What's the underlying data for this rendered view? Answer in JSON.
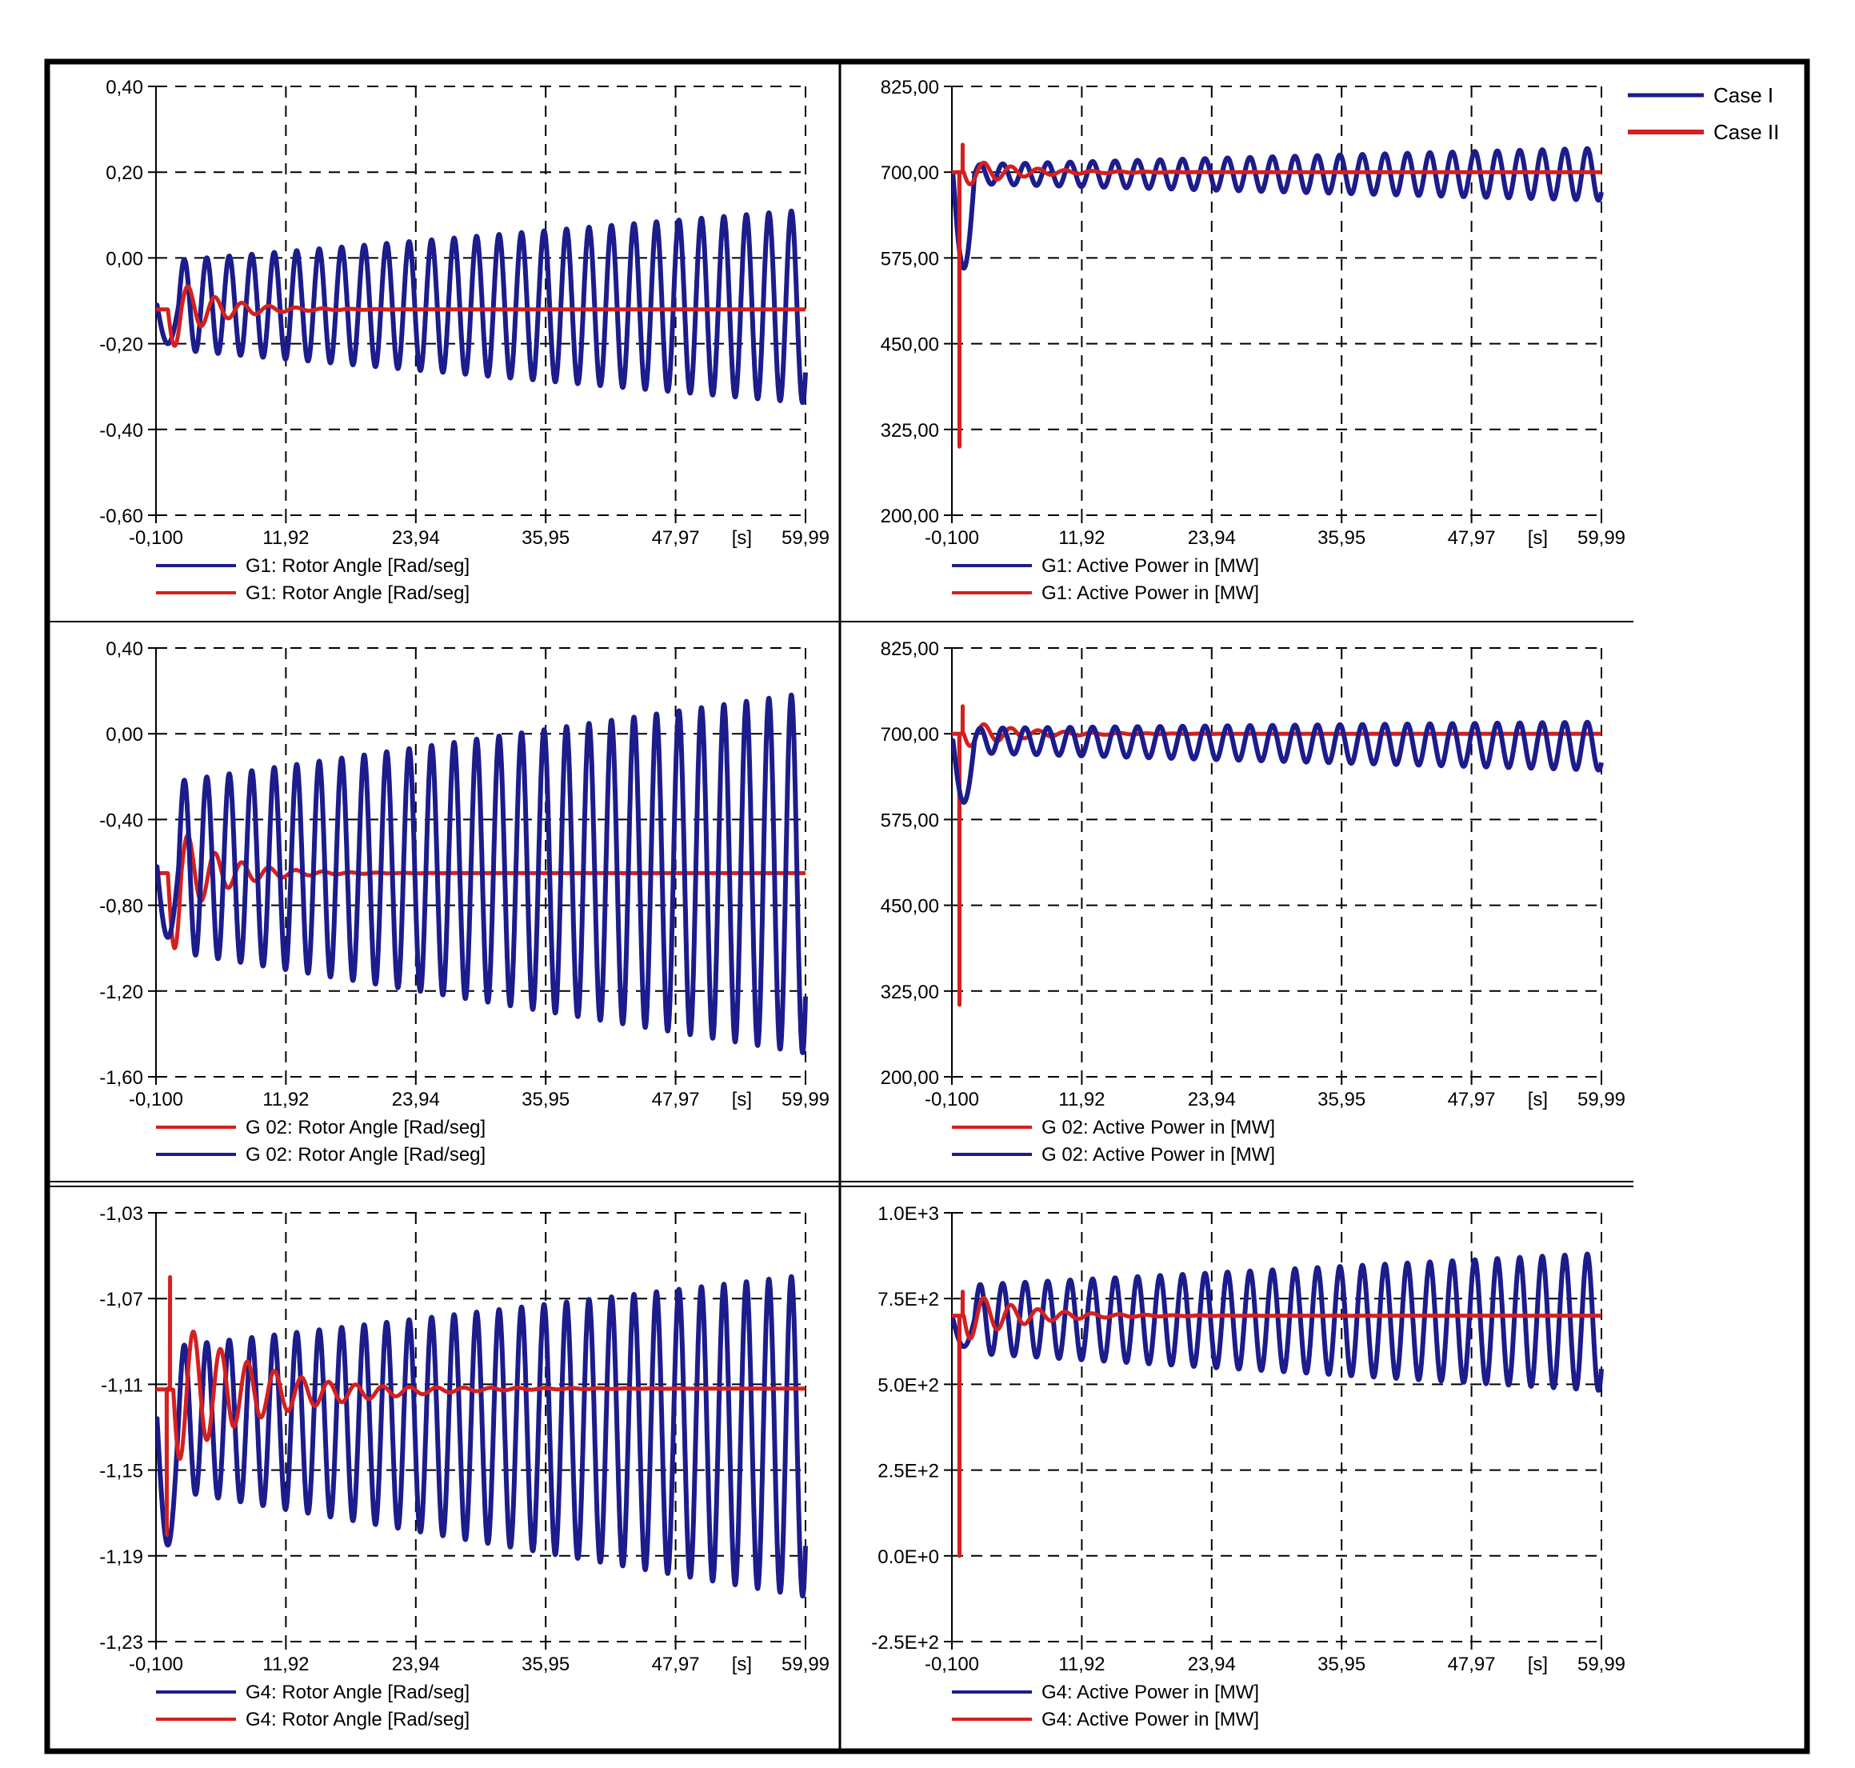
{
  "colors": {
    "case1": "#1c1c8c",
    "case2": "#d42020",
    "grid": "#000000",
    "frame": "#000000",
    "text": "#000000"
  },
  "legend": {
    "case1": "Case I",
    "case2": "Case II"
  },
  "x_unit": "[s]",
  "chart_data": [
    {
      "id": "g1-angle",
      "type": "line",
      "title": "",
      "xlabel": "[s]",
      "ylabel": "",
      "xlim": [
        -0.1,
        59.99
      ],
      "ylim": [
        -0.6,
        0.4
      ],
      "xticks": [
        "-0,100",
        "11,92",
        "23,94",
        "35,95",
        "47,97",
        "59,99"
      ],
      "yticks": [
        "-0,60",
        "-0,40",
        "-0,20",
        "0,00",
        "0,20",
        "0,40"
      ],
      "grid": true,
      "series": [
        {
          "name": "G1: Rotor Angle [Rad/seg]",
          "case": "Case I",
          "color": "case1",
          "model": {
            "shape": "growing",
            "t0": 2.0,
            "base": -0.11,
            "period": 2.08,
            "amp_start": 0.105,
            "amp_end": 0.225,
            "min_offset": -0.003,
            "init_dip": -0.2
          }
        },
        {
          "name": "G1: Rotor Angle [Rad/seg]",
          "case": "Case II",
          "color": "case2",
          "model": {
            "shape": "damped",
            "t0": 1.0,
            "base": -0.12,
            "period": 2.5,
            "amp": 0.085,
            "decay": 1.6,
            "init_dip": -0.205
          }
        }
      ],
      "legend": [
        {
          "label": "G1:  Rotor Angle [Rad/seg]",
          "color": "case1"
        },
        {
          "label": "G1:  Rotor Angle [Rad/seg]",
          "color": "case2"
        }
      ]
    },
    {
      "id": "g1-power",
      "type": "line",
      "title": "",
      "xlabel": "[s]",
      "ylabel": "",
      "xlim": [
        -0.1,
        59.99
      ],
      "ylim": [
        200,
        825
      ],
      "xticks": [
        "-0,100",
        "11,92",
        "23,94",
        "35,95",
        "47,97",
        "59,99"
      ],
      "yticks": [
        "200,00",
        "325,00",
        "450,00",
        "575,00",
        "700,00",
        "825,00"
      ],
      "grid": true,
      "series": [
        {
          "name": "G1:  Active Power in [MW]",
          "case": "Case I",
          "color": "case1",
          "model": {
            "shape": "growing",
            "t0": 2.0,
            "base": 697,
            "period": 2.08,
            "amp_start": 14,
            "amp_end": 38,
            "min_offset": 0,
            "init_dip": 560
          }
        },
        {
          "name": "G1:  Active Power in [MW]",
          "case": "Case II",
          "color": "case2",
          "model": {
            "shape": "damped",
            "t0": 1.0,
            "base": 700,
            "period": 2.5,
            "amp": 20,
            "decay": 2.0,
            "spike": [
              300,
              740
            ]
          }
        }
      ],
      "legend": [
        {
          "label": "G1:  Active Power in [MW]",
          "color": "case1"
        },
        {
          "label": "G1:  Active Power in [MW]",
          "color": "case2"
        }
      ]
    },
    {
      "id": "g2-angle",
      "type": "line",
      "title": "",
      "xlabel": "[s]",
      "ylabel": "",
      "xlim": [
        -0.1,
        59.99
      ],
      "ylim": [
        -1.6,
        0.4
      ],
      "xticks": [
        "-0,100",
        "11,92",
        "23,94",
        "35,95",
        "47,97",
        "59,99"
      ],
      "yticks": [
        "-1,60",
        "-1,20",
        "-0,80",
        "-0,40",
        "0,00",
        "0,40"
      ],
      "grid": true,
      "series": [
        {
          "name": "G 02:  Rotor Angle [Rad/seg]",
          "case": "Case II",
          "color": "case2",
          "model": {
            "shape": "damped",
            "t0": 1.0,
            "base": -0.65,
            "period": 2.5,
            "amp": 0.28,
            "decay": 1.6,
            "init_dip": -1.0
          }
        },
        {
          "name": "G 02:  Rotor Angle [Rad/seg]",
          "case": "Case I",
          "color": "case1",
          "model": {
            "shape": "growing",
            "t0": 2.0,
            "base": -0.62,
            "period": 2.08,
            "amp_start": 0.4,
            "amp_end": 0.84,
            "min_offset": -0.03,
            "init_dip": -0.95
          }
        }
      ],
      "legend": [
        {
          "label": "G 02:  Rotor Angle [Rad/seg]",
          "color": "case2"
        },
        {
          "label": "G 02:  Rotor Angle [Rad/seg]",
          "color": "case1"
        }
      ]
    },
    {
      "id": "g2-power",
      "type": "line",
      "title": "",
      "xlabel": "[s]",
      "ylabel": "",
      "xlim": [
        -0.1,
        59.99
      ],
      "ylim": [
        200,
        825
      ],
      "xticks": [
        "-0,100",
        "11,92",
        "23,94",
        "35,95",
        "47,97",
        "59,99"
      ],
      "yticks": [
        "200,00",
        "325,00",
        "450,00",
        "575,00",
        "700,00",
        "825,00"
      ],
      "grid": true,
      "series": [
        {
          "name": "G 02:  Active Power in [MW]",
          "case": "Case II",
          "color": "case2",
          "model": {
            "shape": "damped",
            "t0": 1.0,
            "base": 700,
            "period": 2.5,
            "amp": 20,
            "decay": 2.0,
            "spike": [
              305,
              740
            ]
          }
        },
        {
          "name": "G 02:  Active Power in [MW]",
          "case": "Case I",
          "color": "case1",
          "model": {
            "shape": "growing",
            "t0": 2.0,
            "base": 690,
            "period": 2.08,
            "amp_start": 18,
            "amp_end": 35,
            "min_offset": -8,
            "init_dip": 600
          }
        }
      ],
      "legend": [
        {
          "label": "G 02:   Active Power in [MW]",
          "color": "case2"
        },
        {
          "label": "G 02:   Active Power in [MW]",
          "color": "case1"
        }
      ]
    },
    {
      "id": "g4-angle",
      "type": "line",
      "title": "",
      "xlabel": "[s]",
      "ylabel": "",
      "xlim": [
        -0.1,
        59.99
      ],
      "ylim": [
        -1.23,
        -1.03
      ],
      "xticks": [
        "-0,100",
        "11,92",
        "23,94",
        "35,95",
        "47,97",
        "59,99"
      ],
      "yticks": [
        "-1,23",
        "-1,19",
        "-1,15",
        "-1,11",
        "-1,07",
        "-1,03"
      ],
      "grid": true,
      "series": [
        {
          "name": "G4:  Rotor Angle [Rad/seg]",
          "case": "Case I",
          "color": "case1",
          "model": {
            "shape": "growing",
            "t0": 2.0,
            "base": -1.126,
            "period": 2.08,
            "amp_start": 0.034,
            "amp_end": 0.075,
            "min_offset": -0.008,
            "init_dip": -1.185
          }
        },
        {
          "name": "G4:  Rotor Angle [Rad/seg]",
          "case": "Case II",
          "color": "case2",
          "model": {
            "shape": "damped",
            "t0": 1.5,
            "base": -1.112,
            "period": 2.5,
            "amp": 0.035,
            "decay": 3.0,
            "spike": [
              -1.18,
              -1.06
            ],
            "sag": [
              -1.114,
              15,
              8
            ]
          }
        }
      ],
      "legend": [
        {
          "label": "G4:  Rotor Angle [Rad/seg]",
          "color": "case1"
        },
        {
          "label": "G4:  Rotor Angle [Rad/seg]",
          "color": "case2"
        }
      ]
    },
    {
      "id": "g4-power",
      "type": "line",
      "title": "",
      "xlabel": "[s]",
      "ylabel": "",
      "xlim": [
        -0.1,
        59.99
      ],
      "ylim": [
        -250,
        1000
      ],
      "xticks": [
        "-0,100",
        "11,92",
        "23,94",
        "35,95",
        "47,97",
        "59,99"
      ],
      "yticks": [
        "-2.5E+2",
        "0.0E+0",
        "2.5E+2",
        "5.0E+2",
        "7.5E+2",
        "1.0E+3"
      ],
      "grid": true,
      "series": [
        {
          "name": "G4:  Active Power in [MW]",
          "case": "Case I",
          "color": "case1",
          "model": {
            "shape": "growing",
            "t0": 2.0,
            "base": 690,
            "period": 2.08,
            "amp_start": 100,
            "amp_end": 200,
            "min_offset": -8,
            "init_dip": 610
          }
        },
        {
          "name": "G4:  Active Power in [MW]",
          "case": "Case II",
          "color": "case2",
          "model": {
            "shape": "damped",
            "t0": 1.0,
            "base": 700,
            "period": 2.5,
            "amp": 75,
            "decay": 2.0,
            "spike": [
              0,
              770
            ]
          }
        }
      ],
      "legend": [
        {
          "label": "G4:  Active Power in [MW]",
          "color": "case1"
        },
        {
          "label": "G4:  Active Power in [MW]",
          "color": "case2"
        }
      ]
    }
  ]
}
